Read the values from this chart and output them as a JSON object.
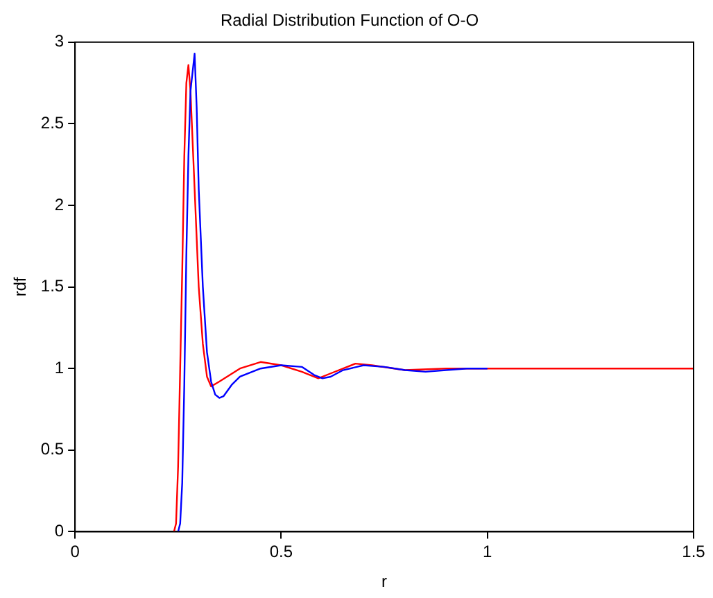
{
  "chart_data": {
    "type": "line",
    "title": "Radial Distribution Function of O-O",
    "xlabel": "r",
    "ylabel": "rdf",
    "xlim": [
      0,
      1.5
    ],
    "xticks": [
      0,
      0.5,
      1,
      1.5
    ],
    "ylim": [
      0,
      3
    ],
    "yticks": [
      0,
      0.5,
      1,
      1.5,
      2,
      2.5,
      3
    ],
    "grid": false,
    "legend": false,
    "marker": "none",
    "line_style": "solid",
    "series": [
      {
        "color": "#0000ff",
        "x": [
          0.25,
          0.255,
          0.26,
          0.265,
          0.27,
          0.275,
          0.28,
          0.29,
          0.295,
          0.3,
          0.31,
          0.32,
          0.33,
          0.34,
          0.35,
          0.36,
          0.38,
          0.4,
          0.45,
          0.5,
          0.55,
          0.58,
          0.6,
          0.62,
          0.65,
          0.7,
          0.75,
          0.8,
          0.85,
          0.9,
          0.95,
          1.0
        ],
        "values": [
          0,
          0.05,
          0.3,
          0.9,
          1.7,
          2.3,
          2.7,
          2.93,
          2.6,
          2.1,
          1.5,
          1.1,
          0.92,
          0.84,
          0.82,
          0.83,
          0.9,
          0.95,
          1.0,
          1.02,
          1.01,
          0.96,
          0.94,
          0.95,
          0.99,
          1.02,
          1.01,
          0.99,
          0.98,
          0.99,
          1.0,
          1.0
        ]
      },
      {
        "color": "#ff0000",
        "x": [
          0.24,
          0.245,
          0.25,
          0.255,
          0.26,
          0.265,
          0.27,
          0.275,
          0.28,
          0.29,
          0.3,
          0.31,
          0.32,
          0.33,
          0.35,
          0.4,
          0.45,
          0.5,
          0.55,
          0.59,
          0.62,
          0.68,
          0.72,
          0.8,
          0.9,
          1.0,
          1.5
        ],
        "values": [
          0,
          0.05,
          0.4,
          1.0,
          1.6,
          2.3,
          2.75,
          2.86,
          2.7,
          2.1,
          1.5,
          1.15,
          0.95,
          0.89,
          0.92,
          1.0,
          1.04,
          1.02,
          0.98,
          0.94,
          0.97,
          1.03,
          1.02,
          0.99,
          1.0,
          1.0,
          1.0
        ]
      }
    ]
  }
}
